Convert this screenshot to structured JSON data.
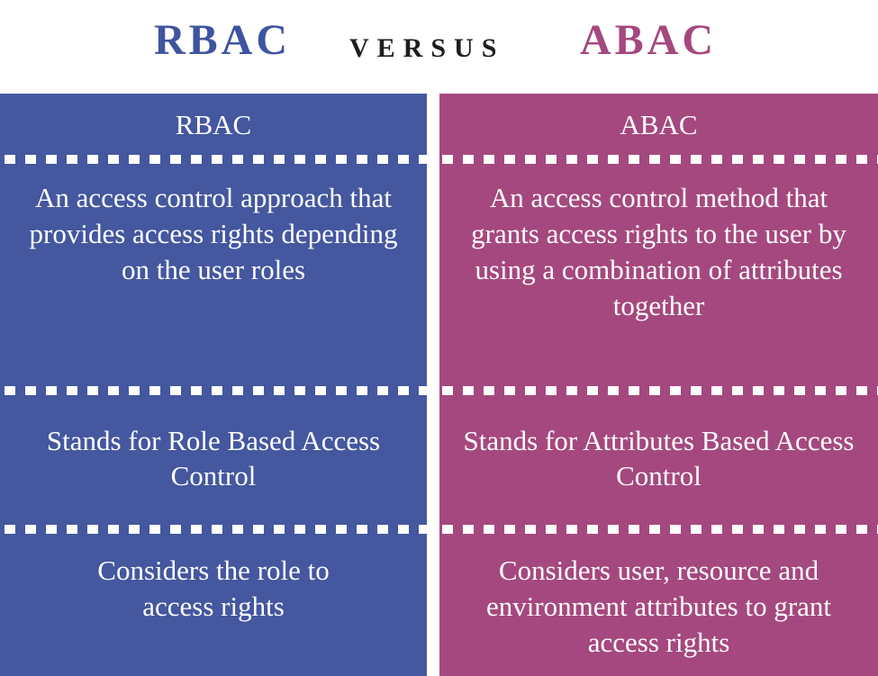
{
  "header": {
    "left_title": "RBAC",
    "versus": "VERSUS",
    "right_title": "ABAC"
  },
  "colors": {
    "rbac": "#44579f",
    "abac": "#a5487f",
    "rbac_title": "#3f54a0",
    "abac_title": "#a5487f",
    "text_on_panel": "#ffffff"
  },
  "columns": {
    "rbac": {
      "heading": "RBAC",
      "definition": "An access control approach that provides access rights depending on the user roles",
      "stands_for": "Stands for Role Based Access Control",
      "considers": "Considers the role to access rights"
    },
    "abac": {
      "heading": "ABAC",
      "definition": "An access control method that grants access rights to the user by using a combination of attributes together",
      "stands_for": "Stands for Attributes Based Access Control",
      "considers": "Considers user, resource and environment attributes to grant access rights"
    }
  }
}
